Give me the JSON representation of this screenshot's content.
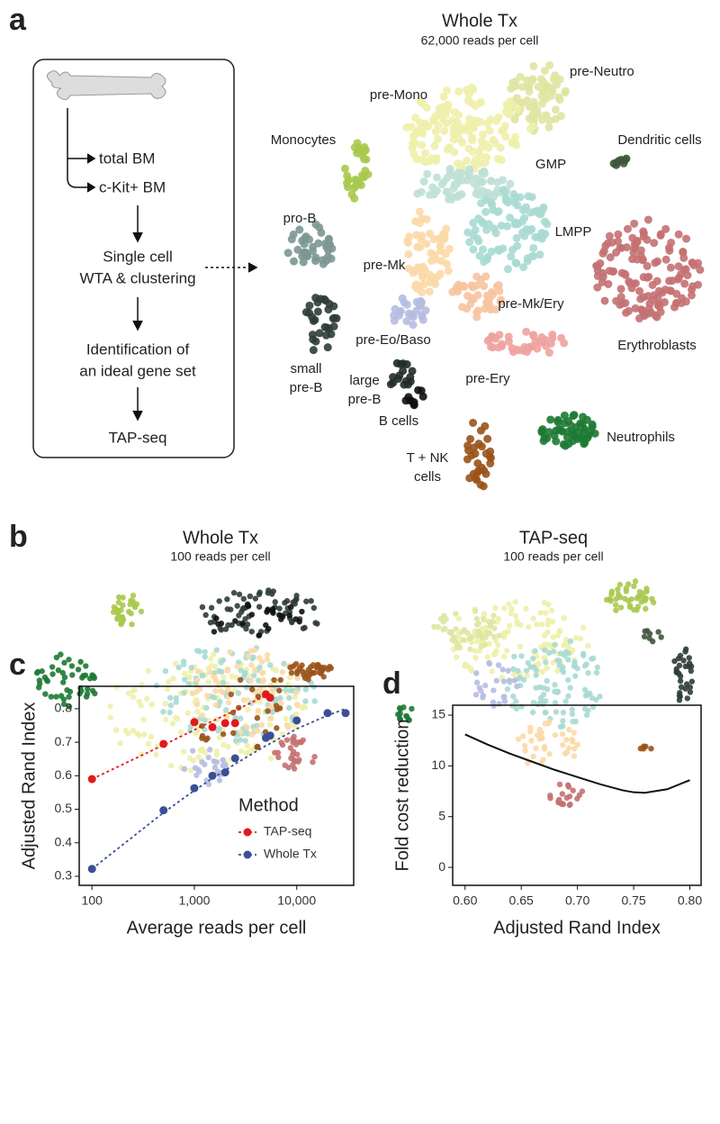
{
  "panel_a": {
    "letter": "a",
    "title": "Whole Tx",
    "subtitle": "62,000 reads per cell",
    "flow": [
      [
        "total BM"
      ],
      [
        "c-Kit+ BM"
      ],
      [
        "Single cell",
        "WTA & clustering"
      ],
      [
        "Identification of",
        "an ideal gene set"
      ],
      [
        "TAP-seq"
      ]
    ],
    "clusters": [
      {
        "label": [
          "pre-Neutro"
        ],
        "color": "#dfe6a2"
      },
      {
        "label": [
          "pre-Mono"
        ],
        "color": "#eef0aa"
      },
      {
        "label": [
          "Monocytes"
        ],
        "color": "#a9c94c"
      },
      {
        "label": [
          "Dendritic cells"
        ],
        "color": "#3e573b"
      },
      {
        "label": [
          "GMP"
        ],
        "color": "#bfe0d6"
      },
      {
        "label": [
          "LMPP"
        ],
        "color": "#a9dad3"
      },
      {
        "label": [
          "pro-B"
        ],
        "color": "#7c9792"
      },
      {
        "label": [
          "pre-Mk"
        ],
        "color": "#fbd9a9"
      },
      {
        "label": [
          "pre-Mk/Ery"
        ],
        "color": "#f6c4a0"
      },
      {
        "label": [
          "Erythroblasts"
        ],
        "color": "#c47172"
      },
      {
        "label": [
          "pre-Eo/Baso"
        ],
        "color": "#b6bde1"
      },
      {
        "label": [
          "small",
          "pre-B"
        ],
        "color": "#2f3d39"
      },
      {
        "label": [
          "large",
          "pre-B"
        ],
        "color": "#222d28"
      },
      {
        "label": [
          "pre-Ery"
        ],
        "color": "#eea3a0"
      },
      {
        "label": [
          "B cells"
        ],
        "color": "#111111"
      },
      {
        "label": [
          "T + NK",
          "cells"
        ],
        "color": "#9a5319"
      },
      {
        "label": [
          "Neutrophils"
        ],
        "color": "#1d7a33"
      }
    ]
  },
  "panel_b": {
    "letter": "b",
    "plots": [
      {
        "title": "Whole Tx",
        "subtitle": "100 reads per cell"
      },
      {
        "title": "TAP-seq",
        "subtitle": "100 reads per cell"
      }
    ]
  },
  "chart_data": [
    {
      "type": "scatter",
      "panel_label": "c",
      "x_label": "Average reads per cell",
      "y_label": "Adjusted Rand Index",
      "xscale": "log",
      "xlim": [
        75,
        36000
      ],
      "ylim": [
        0.273,
        0.867
      ],
      "xticks": [
        100,
        {
          "value": 1000,
          "label": "1,000"
        },
        {
          "value": 10000,
          "label": "10,000"
        }
      ],
      "yticks": [
        0.3,
        0.4,
        0.5,
        0.6,
        0.7,
        0.8
      ],
      "legend_title": "Method",
      "legend": "bottom-right",
      "x": [
        100,
        500,
        1000,
        1500,
        2000,
        2500,
        5000,
        5500,
        10000,
        20000,
        30000
      ],
      "series": [
        {
          "name": "TAP-seq",
          "color": "#e3191c",
          "values": [
            0.59,
            0.695,
            0.76,
            0.745,
            0.757,
            0.757,
            0.843,
            0.833,
            null,
            null,
            null
          ],
          "trend": [
            0.59,
            0.692,
            0.737,
            0.763,
            0.781,
            0.795,
            0.839,
            0.845,
            null,
            null,
            null
          ]
        },
        {
          "name": "Whole Tx",
          "color": "#3b4f96",
          "values": [
            0.322,
            0.497,
            0.563,
            0.6,
            0.61,
            0.652,
            0.713,
            0.72,
            0.765,
            0.787,
            0.787
          ],
          "trend": [
            0.322,
            0.49,
            0.556,
            0.592,
            0.616,
            0.635,
            0.69,
            0.696,
            0.74,
            0.78,
            0.8
          ]
        }
      ]
    },
    {
      "type": "line",
      "panel_label": "d",
      "x_label": "Adjusted Rand Index",
      "y_label": "Fold cost reduction",
      "xlim": [
        0.589,
        0.81
      ],
      "ylim": [
        -1.77,
        15.98
      ],
      "color": "#111111",
      "xticks": [
        {
          "value": 0.6,
          "label": "0.60"
        },
        {
          "value": 0.65,
          "label": "0.65"
        },
        {
          "value": 0.7,
          "label": "0.70"
        },
        {
          "value": 0.75,
          "label": "0.75"
        },
        {
          "value": 0.8,
          "label": "0.80"
        }
      ],
      "yticks": [
        0,
        5,
        10,
        15
      ],
      "x": [
        0.6,
        0.62,
        0.64,
        0.66,
        0.68,
        0.7,
        0.72,
        0.74,
        0.75,
        0.76,
        0.78,
        0.8
      ],
      "values": [
        13.1,
        12.1,
        11.2,
        10.4,
        9.6,
        8.9,
        8.2,
        7.6,
        7.4,
        7.35,
        7.7,
        8.6
      ]
    }
  ]
}
